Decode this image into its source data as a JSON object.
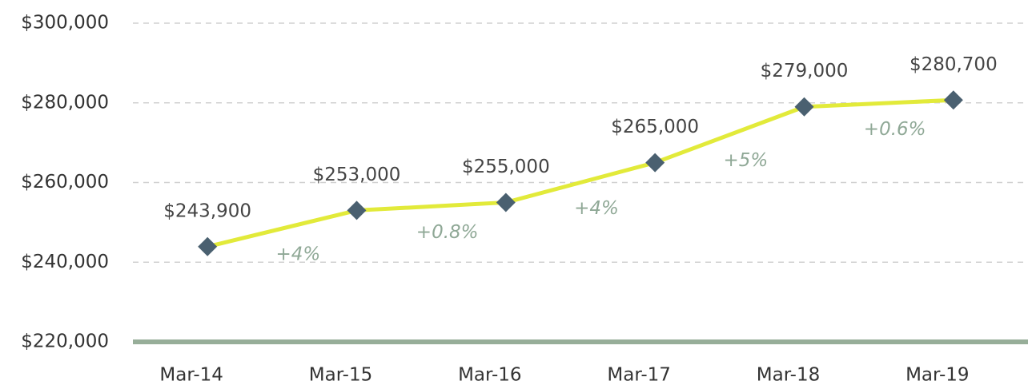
{
  "chart_data": {
    "type": "line",
    "categories": [
      "Mar-14",
      "Mar-15",
      "Mar-16",
      "Mar-17",
      "Mar-18",
      "Mar-19"
    ],
    "values": [
      243900,
      253000,
      255000,
      265000,
      279000,
      280700
    ],
    "value_labels": [
      "$243,900",
      "$253,000",
      "$255,000",
      "$265,000",
      "$279,000",
      "$280,700"
    ],
    "annotations": [
      "+4%",
      "+0.8%",
      "+4%",
      "+5%",
      "+0.6%"
    ],
    "color": "#e2ea3a",
    "marker_color": "#4a6070",
    "axis_color": "#97ae99",
    "ylim": [
      220000,
      300000
    ],
    "yticks": [
      {
        "value": 220000,
        "label": "$220,000"
      },
      {
        "value": 240000,
        "label": "$240,000"
      },
      {
        "value": 260000,
        "label": "$260,000"
      },
      {
        "value": 280000,
        "label": "$280,000"
      },
      {
        "value": 300000,
        "label": "$300,000"
      }
    ],
    "grid": true
  }
}
